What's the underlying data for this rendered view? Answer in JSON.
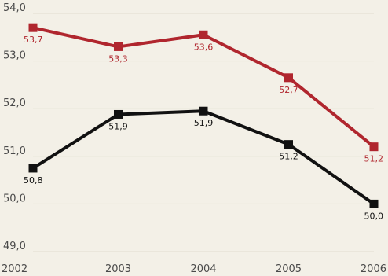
{
  "chart_data": {
    "type": "line",
    "title": "",
    "xlabel": "",
    "ylabel": "",
    "x": [
      "2002",
      "2003",
      "2004",
      "2005",
      "2006"
    ],
    "ylim": [
      49.0,
      54.0
    ],
    "y_ticks": [
      "49,0",
      "50,0",
      "51,0",
      "52,0",
      "53,0",
      "54,0"
    ],
    "y_tick_values": [
      49,
      50,
      51,
      52,
      53,
      54
    ],
    "grid": "horizontal",
    "series": [
      {
        "color": "#b0262e",
        "values": [
          53.7,
          53.3,
          53.55,
          52.65,
          51.2
        ],
        "labels": [
          "53,7",
          "53,3",
          "53,6",
          "52,7",
          "51,2"
        ],
        "label_color": "#b0262e"
      },
      {
        "color": "#111111",
        "values": [
          50.75,
          51.88,
          51.95,
          51.25,
          50.0
        ],
        "labels": [
          "50,8",
          "51,9",
          "51,9",
          "51,2",
          "50,0"
        ],
        "label_color": "#111111"
      }
    ]
  }
}
